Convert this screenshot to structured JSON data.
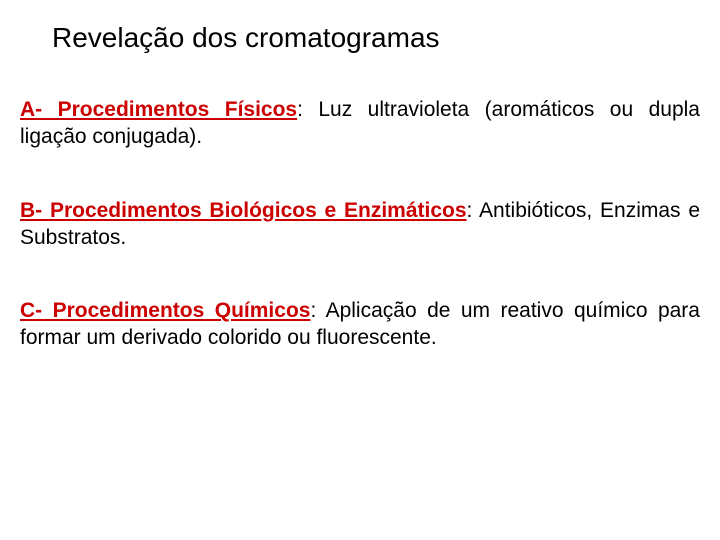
{
  "title": "Revelação dos cromatogramas",
  "sections": {
    "a": {
      "heading": "A- Procedimentos Físicos",
      "body": ": Luz ultravioleta (aromáticos ou dupla ligação conjugada)."
    },
    "b": {
      "heading": "B- Procedimentos Biológicos e Enzimáticos",
      "body": ": Antibióticos, Enzimas e Substratos."
    },
    "c": {
      "heading": "C- Procedimentos Químicos",
      "body": ": Aplicação de um reativo químico para formar um derivado colorido ou fluorescente."
    }
  },
  "colors": {
    "heading_color": "#cc0000",
    "text_color": "#000000",
    "background_color": "#ffffff"
  },
  "typography": {
    "title_fontsize": 28,
    "body_fontsize": 21,
    "font_family": "Arial"
  }
}
